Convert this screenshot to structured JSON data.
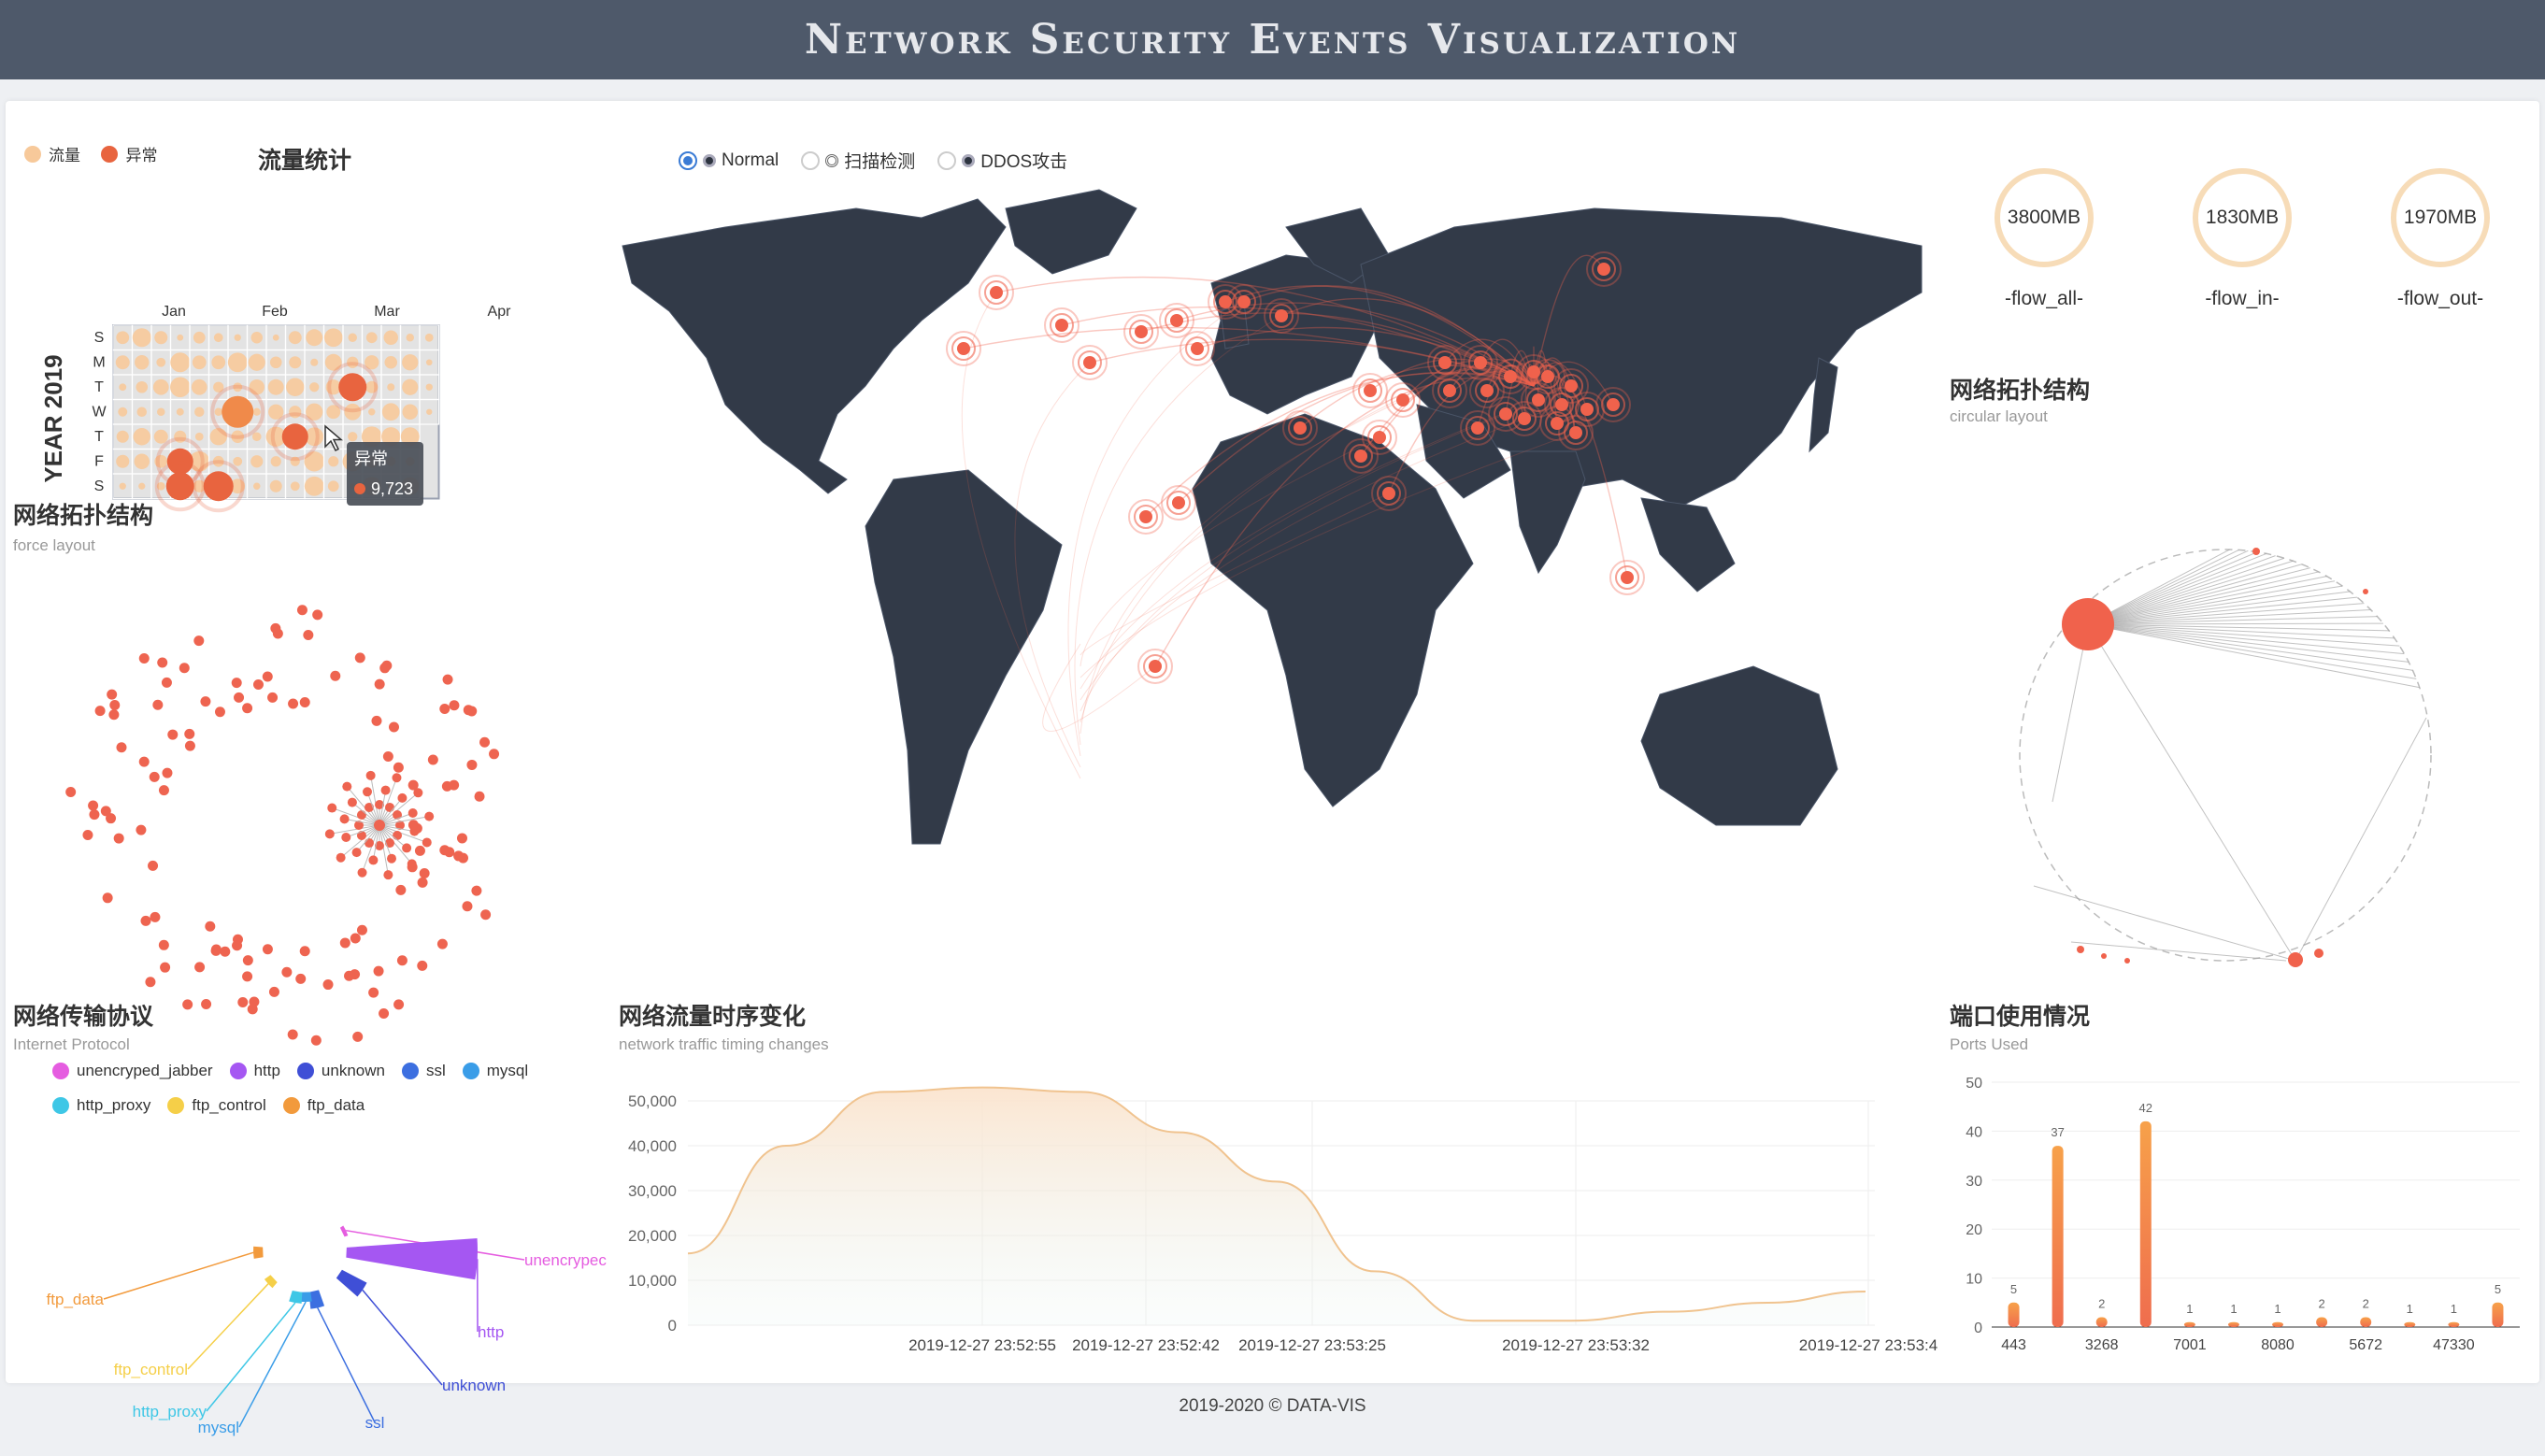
{
  "header": {
    "title": "Network Security Events Visualization"
  },
  "calendar": {
    "title": "流量统计",
    "legend": [
      {
        "label": "流量",
        "color": "#f7c99a"
      },
      {
        "label": "异常",
        "color": "#e8643f"
      }
    ],
    "year_label": "YEAR 2019",
    "months": [
      "Jan",
      "Feb",
      "Mar",
      "Apr"
    ],
    "days": [
      "S",
      "M",
      "T",
      "W",
      "T",
      "F",
      "S"
    ],
    "tooltip": {
      "title": "异常",
      "value": "9,723"
    }
  },
  "map": {
    "legend": [
      {
        "label": "Normal",
        "selected": true
      },
      {
        "label": "扫描检测",
        "selected": false
      },
      {
        "label": "DDOS攻击",
        "selected": false
      }
    ],
    "colors": {
      "ocean": "#ffffff",
      "land": "#323a48",
      "event": "#f0624c"
    }
  },
  "flows": [
    {
      "value": "3800MB",
      "label": "-flow_all-"
    },
    {
      "value": "1830MB",
      "label": "-flow_in-"
    },
    {
      "value": "1970MB",
      "label": "-flow_out-"
    }
  ],
  "force_graph": {
    "title": "网络拓扑结构",
    "subtitle": "force layout"
  },
  "circular_graph": {
    "title": "网络拓扑结构",
    "subtitle": "circular layout"
  },
  "protocols": {
    "title": "网络传输协议",
    "subtitle": "Internet Protocol",
    "legend": [
      {
        "label": "unencryped_jabber",
        "color": "#e55ce0"
      },
      {
        "label": "http",
        "color": "#a557f2"
      },
      {
        "label": "unknown",
        "color": "#3f4fd6"
      },
      {
        "label": "ssl",
        "color": "#3c6fe0"
      },
      {
        "label": "mysql",
        "color": "#3a9de8"
      },
      {
        "label": "http_proxy",
        "color": "#3ec7e6"
      },
      {
        "label": "ftp_control",
        "color": "#f5cf48"
      },
      {
        "label": "ftp_data",
        "color": "#f29a3c"
      }
    ],
    "slice_labels": [
      "unencrypec",
      "http",
      "unknown",
      "ssl",
      "mysql",
      "http_proxy",
      "ftp_control",
      "ftp_data"
    ]
  },
  "traffic": {
    "title": "网络流量时序变化",
    "subtitle": "network traffic timing changes",
    "chart_data": {
      "type": "area",
      "y_ticks": [
        "50,000",
        "40,000",
        "30,000",
        "20,000",
        "10,000",
        "0"
      ],
      "x_ticks": [
        "2019-12-27 23:52:55",
        "2019-12-27 23:52:42",
        "2019-12-27 23:53:25",
        "2019-12-27 23:53:32",
        "2019-12-27 23:53:4"
      ],
      "ylim": [
        0,
        50000
      ],
      "values": [
        16000,
        40000,
        52000,
        53000,
        52000,
        43000,
        32000,
        12000,
        1000,
        1000,
        3000,
        5000,
        7500
      ]
    }
  },
  "ports": {
    "title": "端口使用情况",
    "subtitle": "Ports Used",
    "chart_data": {
      "type": "bar",
      "y_ticks": [
        "50",
        "40",
        "30",
        "20",
        "10",
        "0"
      ],
      "ylim": [
        0,
        50
      ],
      "x_tick_labels": [
        "443",
        "3268",
        "7001",
        "8080",
        "5672",
        "47330"
      ],
      "values": [
        5,
        37,
        2,
        42,
        1,
        1,
        1,
        2,
        2,
        1,
        1,
        5
      ],
      "value_labels": [
        "5",
        "37",
        "2",
        "42",
        "1",
        "1",
        "1",
        "2",
        "2",
        "1",
        "1",
        "5"
      ]
    }
  },
  "footer": {
    "text": "2019-2020 © DATA-VIS"
  }
}
